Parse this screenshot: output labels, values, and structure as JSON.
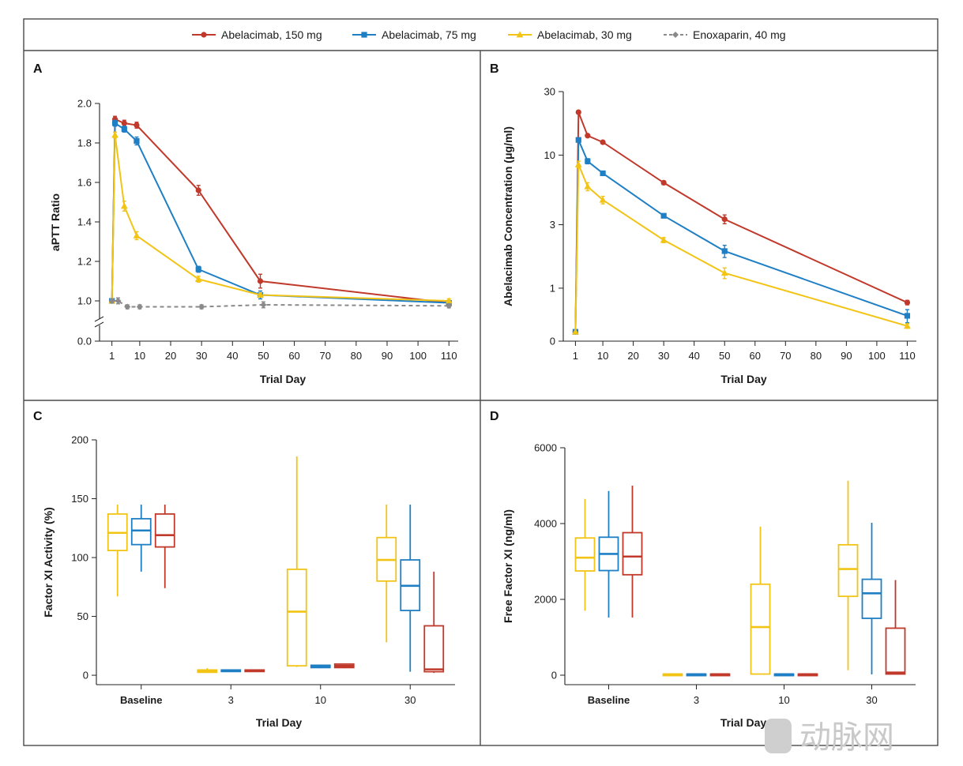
{
  "legend": [
    {
      "label": "Abelacimab, 150 mg",
      "color": "#c0392b",
      "marker": "circle",
      "dashed": false
    },
    {
      "label": "Abelacimab, 75 mg",
      "color": "#1f7fc4",
      "marker": "square",
      "dashed": false
    },
    {
      "label": "Abelacimab, 30 mg",
      "color": "#f2c416",
      "marker": "triangle",
      "dashed": false
    },
    {
      "label": "Enoxaparin, 40 mg",
      "color": "#8a8a8a",
      "marker": "diamond",
      "dashed": true
    }
  ],
  "watermark": "动脉网",
  "chart_data": [
    {
      "panel": "A",
      "type": "line",
      "xlabel": "Trial Day",
      "ylabel": "aPTT Ratio",
      "x_ticks": [
        1,
        10,
        20,
        30,
        40,
        50,
        60,
        70,
        80,
        90,
        100,
        110
      ],
      "y_ticks": [
        1.0,
        1.2,
        1.4,
        1.6,
        1.8,
        2.0
      ],
      "y_tick_labels": [
        "1.0",
        "1.2",
        "1.4",
        "1.6",
        "1.8",
        "2.0"
      ],
      "y_zero_label": "0.0",
      "ylim": [
        0.94,
        2.0
      ],
      "xlim": [
        -3,
        113
      ],
      "axis_break": true,
      "series": [
        {
          "name": "Abelacimab, 150 mg",
          "x": [
            1,
            2,
            5,
            9,
            29,
            49,
            110
          ],
          "y": [
            1.0,
            1.92,
            1.9,
            1.89,
            1.56,
            1.1,
            0.99
          ],
          "err": [
            0.01,
            0.015,
            0.015,
            0.015,
            0.025,
            0.035,
            0.01
          ]
        },
        {
          "name": "Abelacimab, 75 mg",
          "x": [
            1,
            2,
            5,
            9,
            29,
            49,
            110
          ],
          "y": [
            1.0,
            1.9,
            1.87,
            1.81,
            1.16,
            1.03,
            0.99
          ],
          "err": [
            0.01,
            0.015,
            0.015,
            0.02,
            0.015,
            0.02,
            0.01
          ]
        },
        {
          "name": "Abelacimab, 30 mg",
          "x": [
            1,
            2,
            5,
            9,
            29,
            49,
            110
          ],
          "y": [
            1.0,
            1.84,
            1.48,
            1.33,
            1.11,
            1.03,
            1.0
          ],
          "err": [
            0.01,
            0.015,
            0.025,
            0.02,
            0.015,
            0.01,
            0.01
          ]
        },
        {
          "name": "Enoxaparin, 40 mg",
          "x": [
            1,
            3,
            6,
            10,
            30,
            50,
            110
          ],
          "y": [
            1.0,
            1.0,
            0.97,
            0.97,
            0.97,
            0.98,
            0.975
          ],
          "err": [
            0.01,
            0.015,
            0.01,
            0.01,
            0.01,
            0.015,
            0.01
          ]
        }
      ]
    },
    {
      "panel": "B",
      "type": "line",
      "scale": "log",
      "xlabel": "Trial Day",
      "ylabel": "Abelacimab Concentration (μg/ml)",
      "x_ticks": [
        1,
        10,
        20,
        30,
        40,
        50,
        60,
        70,
        80,
        90,
        100,
        110
      ],
      "y_ticks": [
        0.4,
        1,
        3,
        10,
        30
      ],
      "y_tick_labels": [
        "0",
        "1",
        "3",
        "10",
        "30"
      ],
      "ylim": [
        0.4,
        30
      ],
      "xlim": [
        -3,
        113
      ],
      "series": [
        {
          "name": "Abelacimab, 150 mg",
          "x": [
            1,
            2,
            5,
            10,
            30,
            50,
            110
          ],
          "y": [
            0.47,
            21,
            14,
            12.5,
            6.2,
            3.3,
            0.78
          ],
          "err": [
            0,
            0,
            0,
            0,
            0.2,
            0.25,
            0.03
          ]
        },
        {
          "name": "Abelacimab, 75 mg",
          "x": [
            1,
            2,
            5,
            10,
            30,
            50,
            110
          ],
          "y": [
            0.47,
            13,
            9,
            7.3,
            3.5,
            1.9,
            0.62
          ],
          "err": [
            0,
            0,
            0.4,
            0,
            0.1,
            0.2,
            0.07
          ]
        },
        {
          "name": "Abelacimab, 30 mg",
          "x": [
            1,
            2,
            5,
            10,
            30,
            50,
            110
          ],
          "y": [
            0.47,
            8.5,
            5.8,
            4.6,
            2.3,
            1.3,
            0.52
          ],
          "err": [
            0,
            0.5,
            0.4,
            0.3,
            0.1,
            0.12,
            0.02
          ]
        }
      ]
    },
    {
      "panel": "C",
      "type": "box",
      "xlabel": "Trial Day",
      "ylabel": "Factor XI Activity (%)",
      "categories": [
        "Baseline",
        "3",
        "10",
        "30"
      ],
      "y_ticks": [
        0,
        50,
        100,
        150,
        200
      ],
      "ylim": [
        -8,
        200
      ],
      "series": [
        {
          "name": "Abelacimab, 30 mg",
          "boxes": [
            {
              "min": 67,
              "q1": 106,
              "median": 121,
              "q3": 137,
              "max": 145
            },
            {
              "min": 2,
              "q1": 2.5,
              "median": 3.5,
              "q3": 4.5,
              "max": 6
            },
            {
              "min": 7,
              "q1": 8,
              "median": 54,
              "q3": 90,
              "max": 186
            },
            {
              "min": 28,
              "q1": 80,
              "median": 98,
              "q3": 117,
              "max": 145
            }
          ]
        },
        {
          "name": "Abelacimab, 75 mg",
          "boxes": [
            {
              "min": 88,
              "q1": 111,
              "median": 123,
              "q3": 133,
              "max": 145
            },
            {
              "min": 3,
              "q1": 3.5,
              "median": 4,
              "q3": 4.5,
              "max": 5
            },
            {
              "min": 6,
              "q1": 6.5,
              "median": 7.5,
              "q3": 8.5,
              "max": 9
            },
            {
              "min": 3,
              "q1": 55,
              "median": 76,
              "q3": 98,
              "max": 145
            }
          ]
        },
        {
          "name": "Abelacimab, 150 mg",
          "boxes": [
            {
              "min": 74,
              "q1": 109,
              "median": 119,
              "q3": 137,
              "max": 145
            },
            {
              "min": 3,
              "q1": 3.5,
              "median": 4,
              "q3": 4.5,
              "max": 5
            },
            {
              "min": 6,
              "q1": 6.5,
              "median": 8,
              "q3": 9.5,
              "max": 10
            },
            {
              "min": 2,
              "q1": 3,
              "median": 5,
              "q3": 42,
              "max": 88
            }
          ]
        }
      ]
    },
    {
      "panel": "D",
      "type": "box",
      "xlabel": "Trial Day",
      "ylabel": "Free Factor XI (ng/ml)",
      "categories": [
        "Baseline",
        "3",
        "10",
        "30"
      ],
      "y_ticks": [
        0,
        2000,
        4000,
        6000
      ],
      "ylim": [
        -250,
        6000
      ],
      "series": [
        {
          "name": "Abelacimab, 30 mg",
          "boxes": [
            {
              "min": 1700,
              "q1": 2750,
              "median": 3100,
              "q3": 3620,
              "max": 4650
            },
            {
              "min": 20,
              "q1": 20,
              "median": 25,
              "q3": 30,
              "max": 35
            },
            {
              "min": 25,
              "q1": 30,
              "median": 1270,
              "q3": 2400,
              "max": 3920
            },
            {
              "min": 130,
              "q1": 2080,
              "median": 2800,
              "q3": 3440,
              "max": 5130
            }
          ]
        },
        {
          "name": "Abelacimab, 75 mg",
          "boxes": [
            {
              "min": 1520,
              "q1": 2760,
              "median": 3200,
              "q3": 3640,
              "max": 4860
            },
            {
              "min": 20,
              "q1": 20,
              "median": 25,
              "q3": 30,
              "max": 35
            },
            {
              "min": 20,
              "q1": 20,
              "median": 25,
              "q3": 30,
              "max": 35
            },
            {
              "min": 20,
              "q1": 1500,
              "median": 2160,
              "q3": 2530,
              "max": 4020
            }
          ]
        },
        {
          "name": "Abelacimab, 150 mg",
          "boxes": [
            {
              "min": 1520,
              "q1": 2650,
              "median": 3130,
              "q3": 3760,
              "max": 5000
            },
            {
              "min": 20,
              "q1": 20,
              "median": 25,
              "q3": 30,
              "max": 35
            },
            {
              "min": 20,
              "q1": 20,
              "median": 25,
              "q3": 30,
              "max": 35
            },
            {
              "min": 25,
              "q1": 30,
              "median": 70,
              "q3": 1240,
              "max": 2510
            }
          ]
        }
      ]
    }
  ]
}
